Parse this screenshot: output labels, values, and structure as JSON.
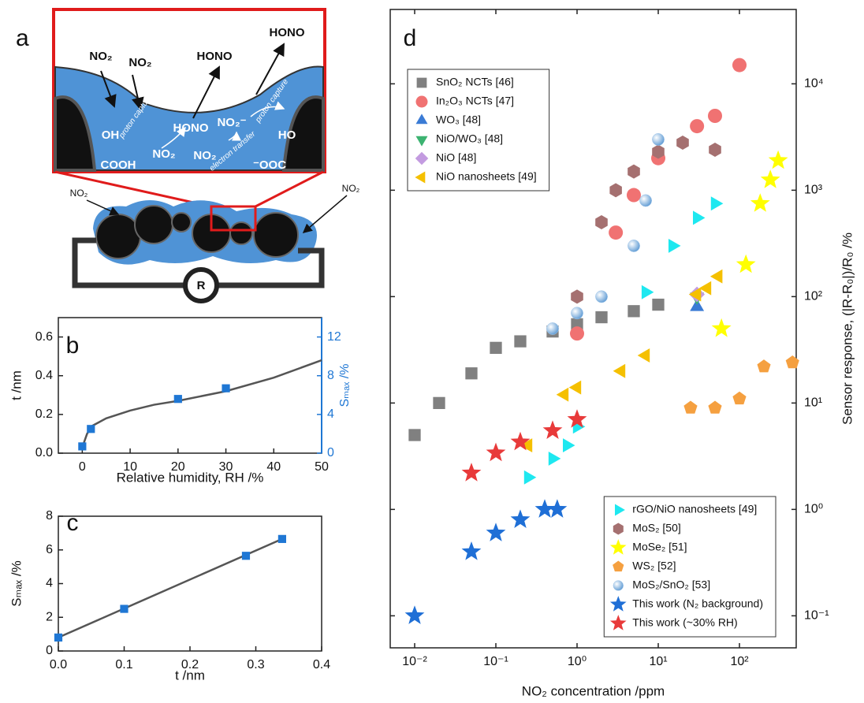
{
  "panel_a": {
    "panel_label": "a",
    "labels": [
      "NO₂",
      "NO₂",
      "HONO",
      "HONO",
      "OH",
      "COOH",
      "proton capture",
      "HONO",
      "NO₂",
      "NO₂⁻",
      "proton capture",
      "electron transfer",
      "NO₂",
      "HO",
      "⁻OOC",
      "NO₂",
      "NO₂",
      "R"
    ]
  },
  "chart_data": [
    {
      "type": "line",
      "panel_label": "b",
      "xlabel": "Relative humidity, RH /%",
      "ylabel": "t /nm",
      "y2label": "Sₘₐₓ /%",
      "xlim": [
        -5,
        50
      ],
      "xticks": [
        0,
        10,
        20,
        30,
        40,
        50
      ],
      "ylim": [
        0,
        0.7
      ],
      "yticks": [
        {
          "value": 0,
          "label": "0.0"
        },
        0.2,
        0.4,
        0.6
      ],
      "y2lim": [
        0,
        14
      ],
      "y2ticks": [
        0,
        4,
        8,
        12
      ],
      "y2color": "#1f77d4",
      "series": [
        {
          "color": "#555555",
          "x": [
            0,
            1,
            2,
            5,
            10,
            15,
            20,
            30,
            40,
            50
          ],
          "values": [
            0.03,
            0.1,
            0.14,
            0.18,
            0.22,
            0.25,
            0.27,
            0.32,
            0.39,
            0.48
          ]
        },
        {
          "color": "#1f77d4",
          "marker": "square",
          "axis": "y2",
          "x": [
            0,
            1.8,
            20,
            30
          ],
          "values": [
            0.7,
            2.5,
            5.6,
            6.7
          ]
        }
      ]
    },
    {
      "type": "line",
      "panel_label": "c",
      "xlabel": "t /nm",
      "ylabel": "Sₘₐₓ /%",
      "xlim": [
        0,
        0.4
      ],
      "xticks": [
        {
          "value": 0,
          "label": "0.0"
        },
        0.1,
        0.2,
        0.3,
        0.4
      ],
      "ylim": [
        0,
        8
      ],
      "yticks": [
        0,
        2,
        4,
        6,
        8
      ],
      "series": [
        {
          "color": "#555555",
          "x": [
            0,
            0.34
          ],
          "values": [
            0.8,
            6.65
          ]
        },
        {
          "color": "#1f77d4",
          "marker": "square",
          "x": [
            0,
            0.1,
            0.285,
            0.34
          ],
          "values": [
            0.8,
            2.5,
            5.65,
            6.65
          ]
        }
      ]
    },
    {
      "type": "scatter",
      "panel_label": "d",
      "xlabel": "NO₂ concentration /ppm",
      "ylabel": "Sensor response, (|R-R₀|)/R₀ /%",
      "xscale": "log",
      "yscale": "log",
      "yaxis_position": "right",
      "xlim": [
        0.005,
        500
      ],
      "xticks": [
        {
          "value": 0.01,
          "label": "10⁻²"
        },
        {
          "value": 0.1,
          "label": "10⁻¹"
        },
        {
          "value": 1,
          "label": "10⁰"
        },
        {
          "value": 10,
          "label": "10¹"
        },
        {
          "value": 100,
          "label": "10²"
        }
      ],
      "ylim": [
        0.05,
        50000
      ],
      "yticks": [
        {
          "value": 0.1,
          "label": "10⁻¹"
        },
        {
          "value": 1,
          "label": "10⁰"
        },
        {
          "value": 10,
          "label": "10¹"
        },
        {
          "value": 100,
          "label": "10²"
        },
        {
          "value": 1000,
          "label": "10³"
        },
        {
          "value": 10000,
          "label": "10⁴"
        }
      ],
      "series": [
        {
          "name": "SnO₂ NCTs [46]",
          "color": "#808080",
          "marker": "square",
          "legend": "upper left",
          "x": [
            0.01,
            0.02,
            0.05,
            0.1,
            0.2,
            0.5,
            1,
            2,
            5,
            10
          ],
          "values": [
            5,
            10,
            19,
            33,
            38,
            47,
            55,
            64,
            73,
            84
          ]
        },
        {
          "name": "In₂O₃ NCTs [47]",
          "color": "#f07272",
          "marker": "circle",
          "legend": "upper left",
          "x": [
            1,
            3,
            5,
            10,
            30,
            50,
            100
          ],
          "values": [
            45,
            400,
            900,
            2000,
            4000,
            5000,
            15000
          ]
        },
        {
          "name": "WO₃ [48]",
          "color": "#3a7bd5",
          "marker": "triangle-up",
          "legend": "upper left",
          "x": [
            30
          ],
          "values": [
            80
          ]
        },
        {
          "name": "NiO/WO₃ [48]",
          "color": "#3cb371",
          "marker": "triangle-down",
          "legend": "upper left",
          "x": [
            30
          ],
          "values": [
            100
          ]
        },
        {
          "name": "NiO [48]",
          "color": "#c39be0",
          "marker": "diamond",
          "legend": "upper left",
          "x": [
            30
          ],
          "values": [
            105
          ]
        },
        {
          "name": "NiO nanosheets [49]",
          "color": "#f5c000",
          "marker": "triangle-left",
          "legend": "upper left",
          "x": [
            0.25,
            0.7,
            1,
            3.5,
            7,
            30,
            40,
            55
          ],
          "values": [
            4,
            12,
            14,
            20,
            28,
            105,
            120,
            155
          ]
        },
        {
          "name": "rGO/NiO nanosheets [49]",
          "color": "#1ee8f0",
          "marker": "triangle-right",
          "legend": "lower right",
          "x": [
            0.25,
            0.5,
            0.75,
            1,
            7,
            15,
            30,
            50
          ],
          "values": [
            2,
            3,
            4,
            6,
            110,
            300,
            550,
            750
          ]
        },
        {
          "name": "MoS₂ [50]",
          "color": "#a57070",
          "marker": "hexagon",
          "legend": "lower right",
          "x": [
            1,
            2,
            3,
            5,
            10,
            20,
            50
          ],
          "values": [
            100,
            500,
            1000,
            1500,
            2300,
            2800,
            2400
          ]
        },
        {
          "name": "MoSe₂ [51]",
          "color": "#ffff00",
          "marker": "star",
          "legend": "lower right",
          "x": [
            60,
            120,
            180,
            240,
            300
          ],
          "values": [
            50,
            200,
            750,
            1250,
            1900
          ]
        },
        {
          "name": "WS₂ [52]",
          "color": "#f5a040",
          "marker": "pentagon",
          "legend": "lower right",
          "x": [
            25,
            50,
            100,
            200,
            450
          ],
          "values": [
            9,
            9,
            11,
            22,
            24
          ]
        },
        {
          "name": "MoS₂/SnO₂ [53]",
          "color": "#9ec5ea",
          "marker": "sphere",
          "legend": "lower right",
          "x": [
            0.5,
            1,
            2,
            5,
            7,
            10
          ],
          "values": [
            50,
            70,
            100,
            300,
            800,
            3000
          ]
        },
        {
          "name": "This work (N₂ background)",
          "color": "#1f6fd6",
          "marker": "star",
          "legend": "lower right",
          "x": [
            0.01,
            0.05,
            0.1,
            0.2,
            0.4,
            0.57
          ],
          "values": [
            0.1,
            0.4,
            0.6,
            0.8,
            1,
            1
          ]
        },
        {
          "name": "This work (~30% RH)",
          "color": "#e83a3a",
          "marker": "star",
          "legend": "lower right",
          "x": [
            0.05,
            0.1,
            0.2,
            0.5,
            1
          ],
          "values": [
            2.2,
            3.4,
            4.3,
            5.5,
            7
          ]
        }
      ]
    }
  ]
}
